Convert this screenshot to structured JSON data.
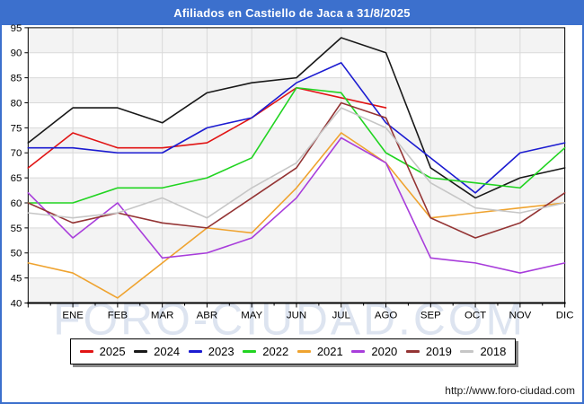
{
  "title": "Afiliados en Castiello de Jaca a 31/8/2025",
  "watermark": "FORO-CIUDAD.COM",
  "footer_url": "http://www.foro-ciudad.com",
  "colors": {
    "frame_blue": "#3c70cd",
    "grid": "#d9d9d9",
    "band_shade": "#f3f3f3",
    "axis": "#000000",
    "watermark": "#dde4f0"
  },
  "chart_data": {
    "type": "line",
    "title": "Afiliados en Castiello de Jaca a 31/8/2025",
    "x_labels": [
      "ENE",
      "FEB",
      "MAR",
      "ABR",
      "MAY",
      "JUN",
      "JUL",
      "AGO",
      "SEP",
      "OCT",
      "NOV",
      "DIC"
    ],
    "note": "Each series has 13 points: an unlabeled point on the left axis edge followed by the 12 month positions; 2025 ends at AGO",
    "ylim": [
      40,
      95
    ],
    "ytick_step": 5,
    "grid": true,
    "legend_position": "bottom",
    "series": [
      {
        "name": "2025",
        "color": "#e11414",
        "values": [
          67,
          74,
          71,
          71,
          72,
          77,
          83,
          81,
          79
        ]
      },
      {
        "name": "2024",
        "color": "#181818",
        "values": [
          72,
          79,
          79,
          76,
          82,
          84,
          85,
          93,
          90,
          67,
          61,
          65,
          67
        ]
      },
      {
        "name": "2023",
        "color": "#1b1bd1",
        "values": [
          71,
          71,
          70,
          70,
          75,
          77,
          84,
          88,
          76,
          69,
          62,
          70,
          72
        ]
      },
      {
        "name": "2022",
        "color": "#21d421",
        "values": [
          60,
          60,
          63,
          63,
          65,
          69,
          83,
          82,
          70,
          65,
          64,
          63,
          71
        ]
      },
      {
        "name": "2021",
        "color": "#efa32f",
        "values": [
          48,
          46,
          41,
          48,
          55,
          54,
          63,
          74,
          68,
          57,
          58,
          59,
          60
        ]
      },
      {
        "name": "2020",
        "color": "#a83ddb",
        "values": [
          62,
          53,
          60,
          49,
          50,
          53,
          61,
          73,
          68,
          49,
          48,
          46,
          48
        ]
      },
      {
        "name": "2019",
        "color": "#943434",
        "values": [
          60,
          56,
          58,
          56,
          55,
          61,
          67,
          80,
          77,
          57,
          53,
          56,
          62
        ]
      },
      {
        "name": "2018",
        "color": "#c6c6c6",
        "values": [
          58,
          57,
          58,
          61,
          57,
          63,
          68,
          79,
          75,
          64,
          59,
          58,
          60
        ]
      }
    ]
  }
}
